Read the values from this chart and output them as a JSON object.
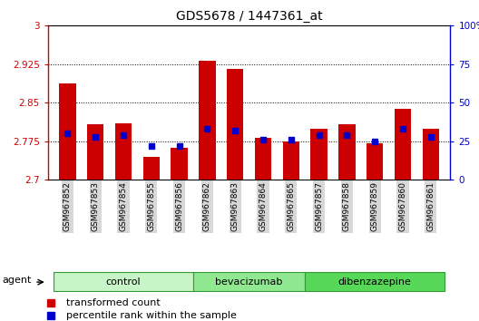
{
  "title": "GDS5678 / 1447361_at",
  "samples": [
    "GSM967852",
    "GSM967853",
    "GSM967854",
    "GSM967855",
    "GSM967856",
    "GSM967862",
    "GSM967863",
    "GSM967864",
    "GSM967865",
    "GSM967857",
    "GSM967858",
    "GSM967859",
    "GSM967860",
    "GSM967861"
  ],
  "red_values": [
    2.888,
    2.808,
    2.81,
    2.745,
    2.762,
    2.932,
    2.915,
    2.782,
    2.775,
    2.8,
    2.808,
    2.771,
    2.838,
    2.8
  ],
  "blue_values": [
    30,
    28,
    29,
    22,
    22,
    33,
    32,
    26,
    26,
    29,
    29,
    25,
    33,
    28
  ],
  "groups": [
    {
      "label": "control",
      "start": 0,
      "end": 5,
      "color": "#c8f5c8"
    },
    {
      "label": "bevacizumab",
      "start": 5,
      "end": 9,
      "color": "#90e890"
    },
    {
      "label": "dibenzazepine",
      "start": 9,
      "end": 14,
      "color": "#58d858"
    }
  ],
  "ylim_left": [
    2.7,
    3.0
  ],
  "ylim_right": [
    0,
    100
  ],
  "yticks_left": [
    2.7,
    2.775,
    2.85,
    2.925,
    3.0
  ],
  "ytick_labels_left": [
    "2.7",
    "2.775",
    "2.85",
    "2.925",
    "3"
  ],
  "yticks_right": [
    0,
    25,
    50,
    75,
    100
  ],
  "ytick_labels_right": [
    "0",
    "25",
    "50",
    "75",
    "100%"
  ],
  "red_color": "#cc0000",
  "blue_color": "#0000cc",
  "bar_bottom": 2.7,
  "agent_label": "agent",
  "legend_red": "transformed count",
  "legend_blue": "percentile rank within the sample",
  "grid_yticks": [
    2.775,
    2.85,
    2.925
  ],
  "bar_width": 0.6,
  "bg_color": "#ffffff",
  "xticklabel_bg": "#d8d8d8"
}
